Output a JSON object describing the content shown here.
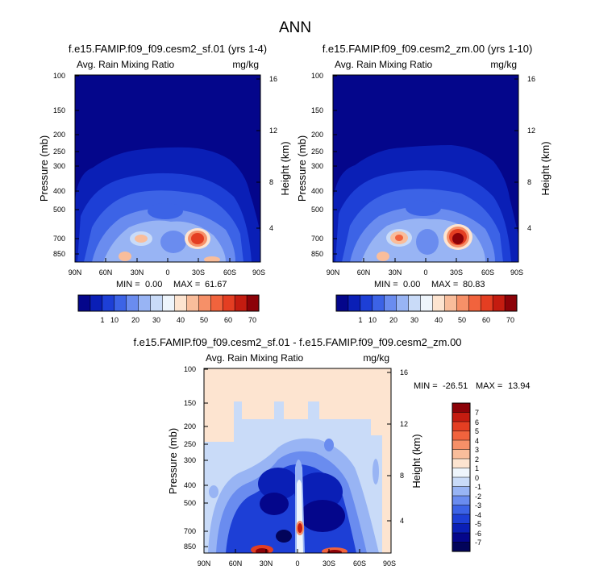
{
  "figure": {
    "title": "ANN"
  },
  "chart_data": [
    {
      "type": "heatmap",
      "title": "f.e15.FAMIP.f09_f09.cesm2_sf.01 (yrs 1-4)",
      "subtitle_left": "Avg. Rain Mixing Ratio",
      "subtitle_right": "mg/kg",
      "ylabel": "Pressure (mb)",
      "y2label": "Height (km)",
      "xticks": [
        "90N",
        "60N",
        "30N",
        "0",
        "30S",
        "60S",
        "90S"
      ],
      "yticks": [
        "100",
        "150",
        "200",
        "250",
        "300",
        "400",
        "500",
        "700",
        "850"
      ],
      "y2ticks": [
        "16",
        "12",
        "8",
        "4"
      ],
      "min_label": "MIN =",
      "min_value": "0.00",
      "max_label": "MAX =",
      "max_value": "61.67",
      "maxima": [
        {
          "lat": -30,
          "p": 700,
          "value": 61.67
        },
        {
          "lat": 20,
          "p": 700,
          "value": 45
        }
      ],
      "colorbar": {
        "labels": [
          "1",
          "10",
          "20",
          "30",
          "40",
          "50",
          "60",
          "70"
        ],
        "colors": [
          "#04068b",
          "#0a1fb6",
          "#1d3fd6",
          "#3c63e6",
          "#6a8cef",
          "#98b4f4",
          "#c9dbf8",
          "#eef5fc",
          "#fde4d0",
          "#f9bd9b",
          "#f69068",
          "#f1633d",
          "#e43e22",
          "#c41c10",
          "#8c0208"
        ]
      }
    },
    {
      "type": "heatmap",
      "title": "f.e15.FAMIP.f09_f09.cesm2_zm.00 (yrs 1-10)",
      "subtitle_left": "Avg. Rain Mixing Ratio",
      "subtitle_right": "mg/kg",
      "ylabel": "Pressure (mb)",
      "y2label": "Height (km)",
      "xticks": [
        "90N",
        "60N",
        "30N",
        "0",
        "30S",
        "60S",
        "90S"
      ],
      "yticks": [
        "100",
        "150",
        "200",
        "250",
        "300",
        "400",
        "500",
        "700",
        "850"
      ],
      "y2ticks": [
        "16",
        "12",
        "8",
        "4"
      ],
      "min_label": "MIN =",
      "min_value": "0.00",
      "max_label": "MAX =",
      "max_value": "80.83",
      "maxima": [
        {
          "lat": -30,
          "p": 700,
          "value": 80.83
        },
        {
          "lat": 25,
          "p": 700,
          "value": 55
        }
      ],
      "colorbar": {
        "labels": [
          "1",
          "10",
          "20",
          "30",
          "40",
          "50",
          "60",
          "70"
        ],
        "colors": [
          "#04068b",
          "#0a1fb6",
          "#1d3fd6",
          "#3c63e6",
          "#6a8cef",
          "#98b4f4",
          "#c9dbf8",
          "#eef5fc",
          "#fde4d0",
          "#f9bd9b",
          "#f69068",
          "#f1633d",
          "#e43e22",
          "#c41c10",
          "#8c0208"
        ]
      }
    },
    {
      "type": "heatmap",
      "title": "f.e15.FAMIP.f09_f09.cesm2_sf.01 - f.e15.FAMIP.f09_f09.cesm2_zm.00",
      "subtitle_left": "Avg. Rain Mixing Ratio",
      "subtitle_right": "mg/kg",
      "ylabel": "Pressure (mb)",
      "y2label": "Height (km)",
      "xticks": [
        "90N",
        "60N",
        "30N",
        "0",
        "30S",
        "60S",
        "90S"
      ],
      "yticks": [
        "100",
        "150",
        "200",
        "250",
        "300",
        "400",
        "500",
        "700",
        "850"
      ],
      "y2ticks": [
        "16",
        "12",
        "8",
        "4"
      ],
      "min_label": "MIN =",
      "min_value": "-26.51",
      "max_label": "MAX =",
      "max_value": "13.94",
      "colorbar": {
        "labels": [
          "7",
          "6",
          "5",
          "4",
          "3",
          "2",
          "1",
          "0",
          "-1",
          "-2",
          "-3",
          "-4",
          "-5",
          "-6",
          "-7"
        ],
        "colors": [
          "#8c0208",
          "#c41c10",
          "#e43e22",
          "#f1633d",
          "#f69068",
          "#f9bd9b",
          "#fde4d0",
          "#eef5fc",
          "#c9dbf8",
          "#98b4f4",
          "#6a8cef",
          "#3c63e6",
          "#1d3fd6",
          "#0a1fb6",
          "#04068b",
          "#02045a"
        ]
      }
    }
  ]
}
